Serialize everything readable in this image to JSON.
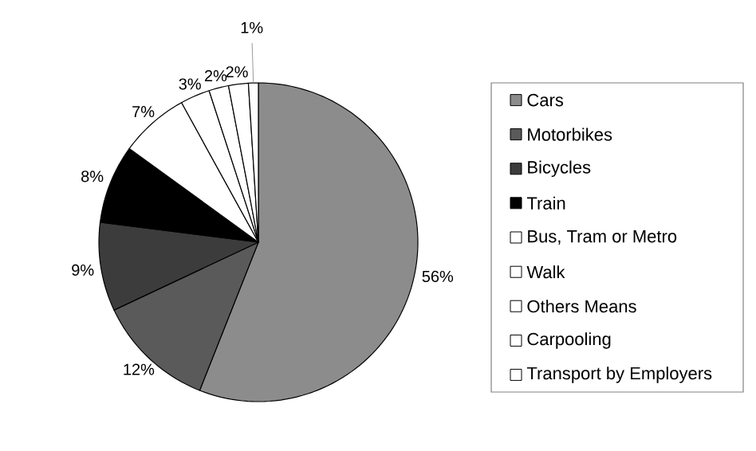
{
  "chart_data": {
    "type": "pie",
    "categories": [
      "Cars",
      "Motorbikes",
      "Bicycles",
      "Train",
      "Bus, Tram or Metro",
      "Walk",
      "Others Means",
      "Carpooling",
      "Transport by Employers"
    ],
    "values": [
      56,
      12,
      9,
      8,
      7,
      3,
      2,
      2,
      1
    ],
    "colors": [
      "#8c8c8c",
      "#5a5a5a",
      "#3c3c3c",
      "#000000",
      "#ffffff",
      "#ffffff",
      "#ffffff",
      "#ffffff",
      "#ffffff"
    ],
    "value_labels": [
      "56%",
      "12%",
      "9%",
      "8%",
      "7%",
      "3%",
      "2%",
      "2%",
      "1%"
    ],
    "legend": "right"
  }
}
